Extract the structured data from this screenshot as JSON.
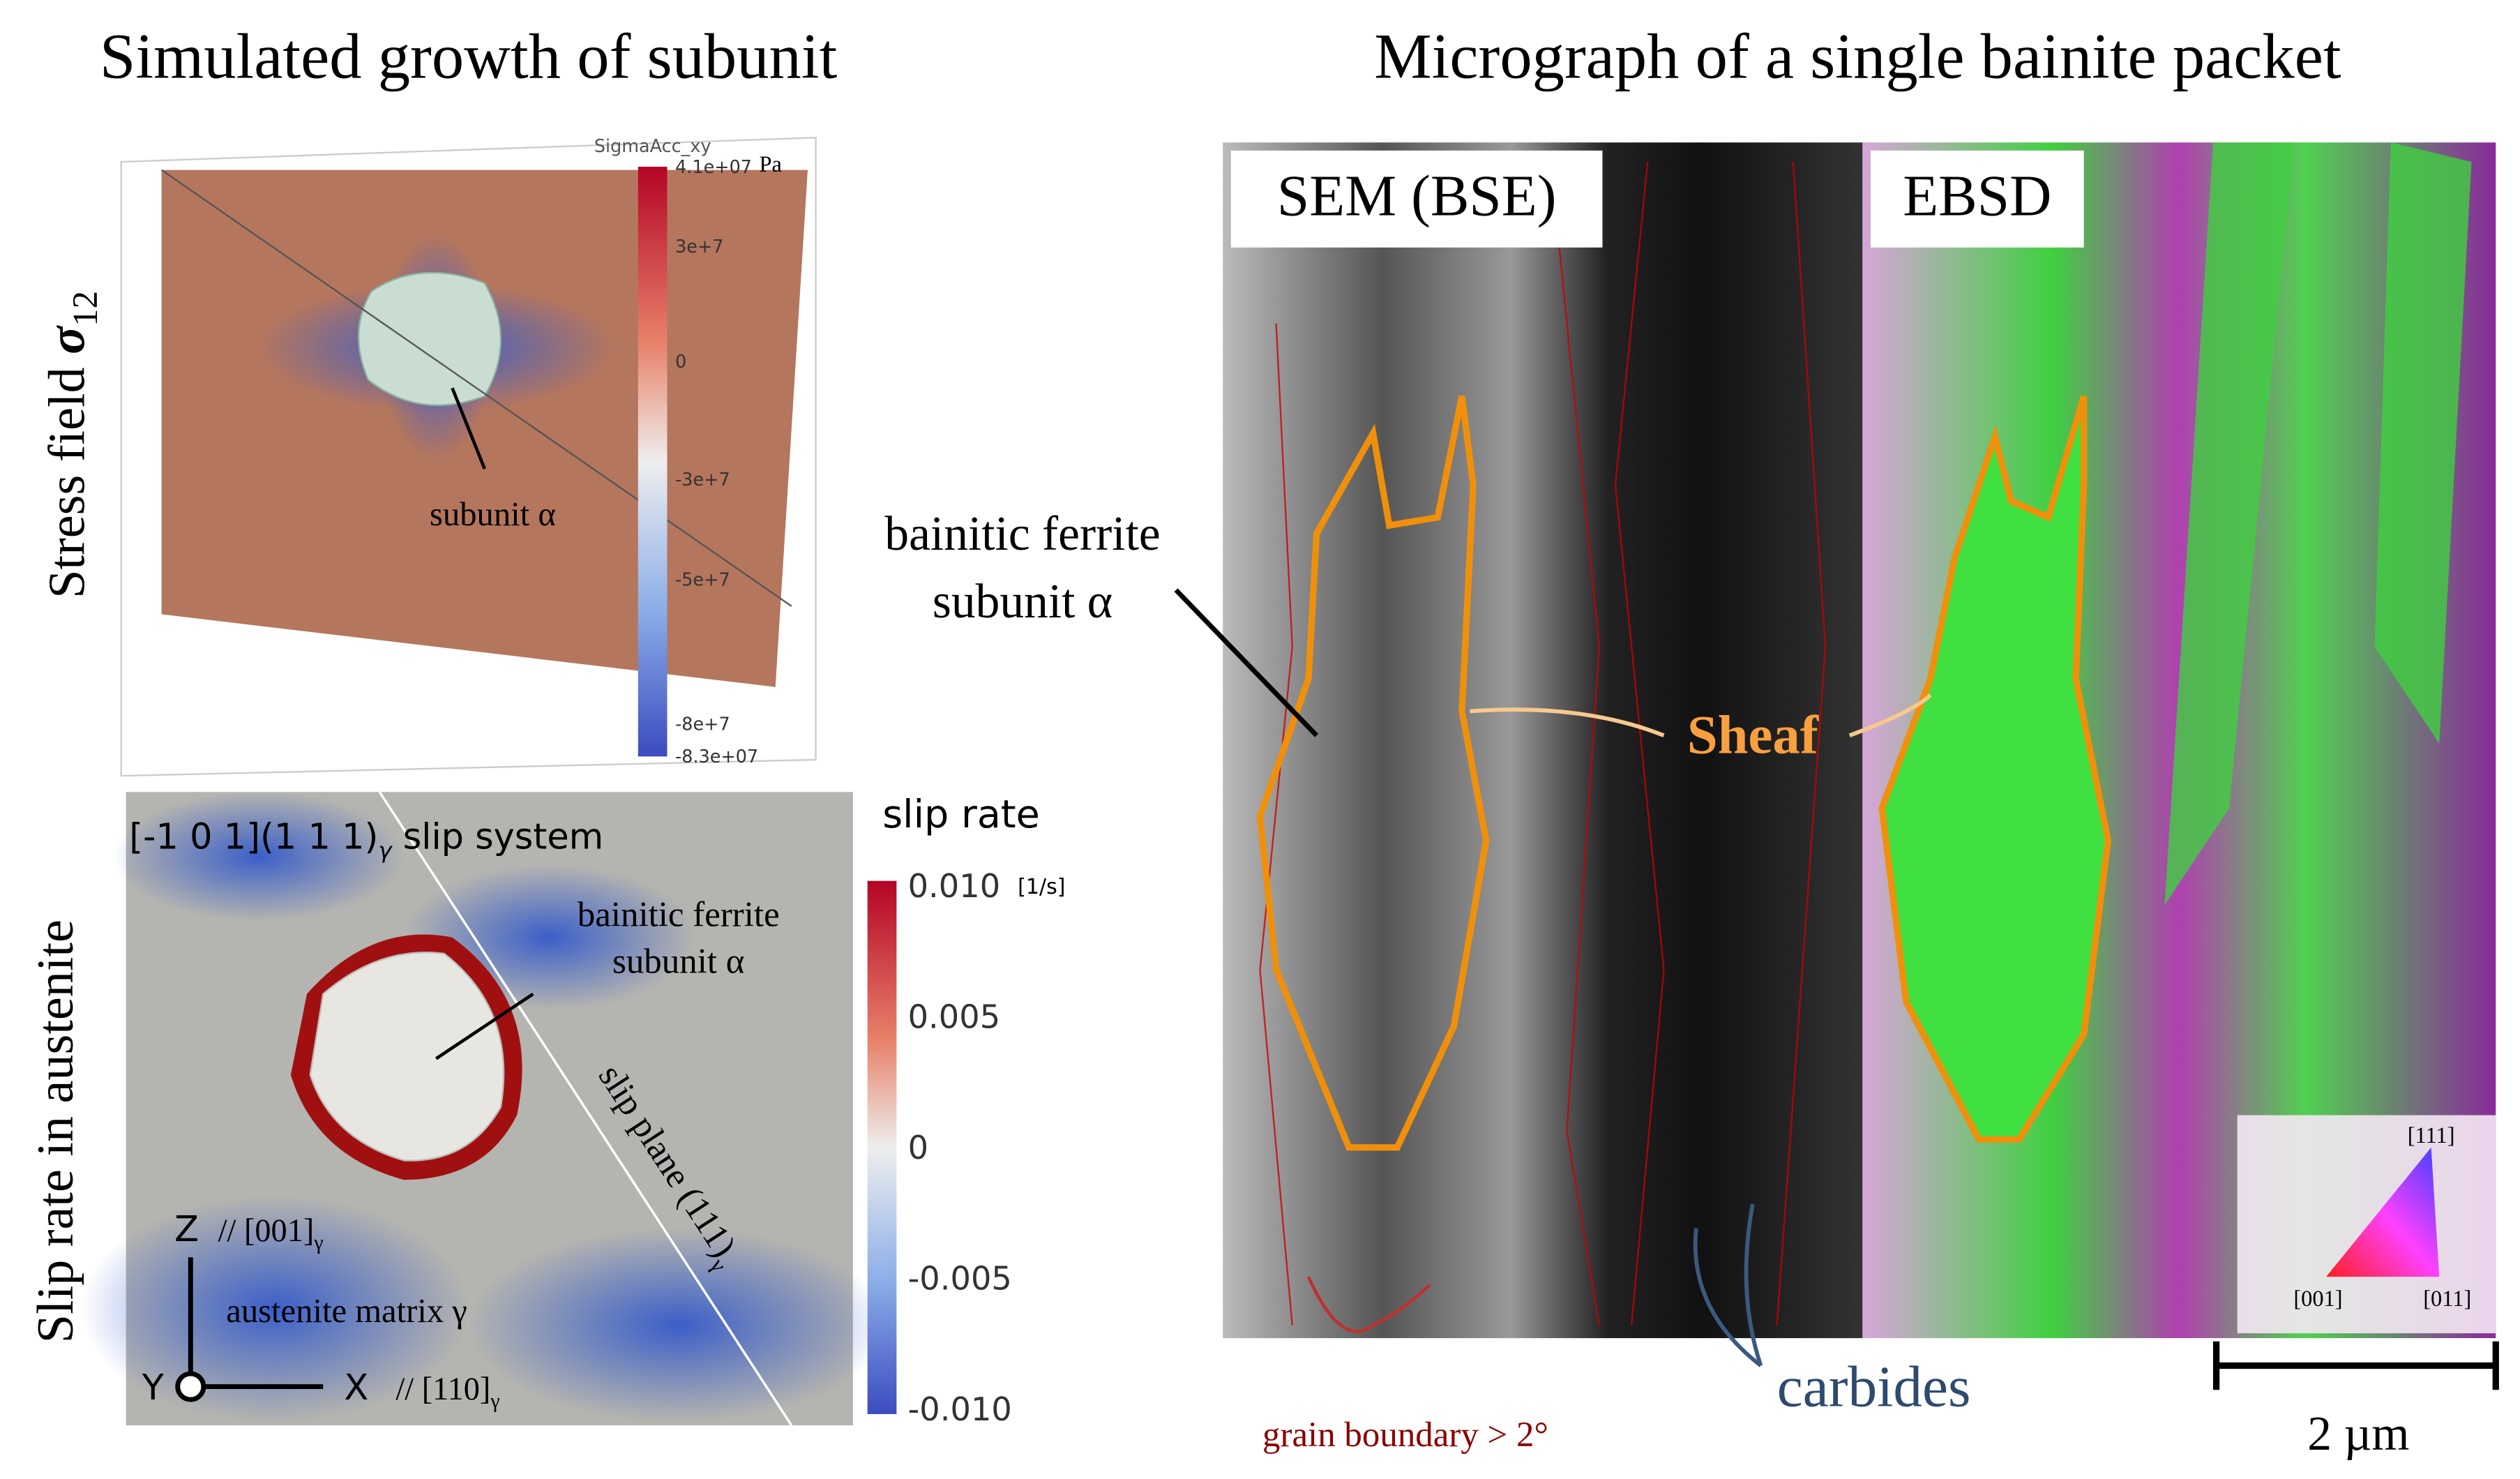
{
  "left": {
    "title": "Simulated growth of subunit",
    "stress": {
      "label": "Stress field ",
      "symbol": "σ",
      "symbol_sub": "12",
      "colorbar_title": "SigmaAcc_xy",
      "colorbar_unit": "Pa",
      "colorbar_ticks": [
        "4.1e+07",
        "3e+7",
        "0",
        "-3e+7",
        "-5e+7",
        "-8e+7",
        "-8.3e+07"
      ],
      "annotation": "subunit α"
    },
    "slip": {
      "label": "Slip rate in austenite",
      "colorbar_title": "slip rate",
      "colorbar_unit": "[1/s]",
      "colorbar_ticks": [
        "0.010",
        "0.005",
        "0",
        "-0.005",
        "-0.010"
      ],
      "system": "[-1 0 1](1 1 1)",
      "system_sub": "γ",
      "system_tail": " slip system",
      "annotation": [
        "bainitic ferrite",
        "subunit α"
      ],
      "plane": "slip plane (111)",
      "plane_sub": "γ",
      "z_axis": "Z",
      "z_dir": "// [001]",
      "z_sub": "γ",
      "matrix": "austenite matrix γ",
      "y_axis": "Y",
      "x_axis": "X",
      "x_dir": "// [110]",
      "x_sub": "γ"
    }
  },
  "right": {
    "title": "Micrograph of a single bainite packet",
    "sem_label": "SEM (BSE)",
    "ebsd_label": "EBSD",
    "subunit": [
      "bainitic ferrite",
      "subunit α"
    ],
    "sheaf": "Sheaf",
    "grain_boundary": "grain boundary > 2°",
    "carbides": "carbides",
    "scale": "2 µm",
    "ipf": [
      "[111]",
      "[001]",
      "[011]"
    ]
  }
}
